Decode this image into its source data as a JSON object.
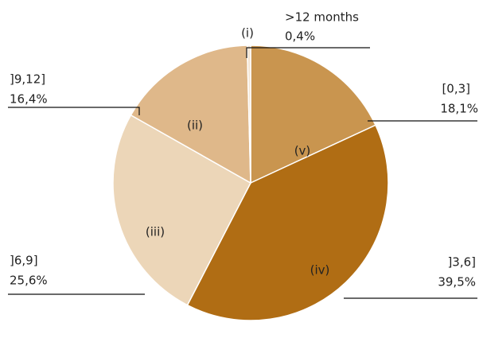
{
  "chart_data": {
    "type": "pie",
    "categories": [
      "[0,3]",
      "]3,6]",
      "]6,9]",
      "]9,12]",
      ">12 months"
    ],
    "slice_labels": [
      "(v)",
      "(iv)",
      "(iii)",
      "(ii)",
      "(i)"
    ],
    "values": [
      18.1,
      39.5,
      25.6,
      16.4,
      0.4
    ],
    "value_labels": [
      "18,1%",
      "39,5%",
      "25,6%",
      "16,4%",
      "0,4%"
    ],
    "colors": [
      "#c9954f",
      "#b06d14",
      "#ecd6b8",
      "#dfb88a",
      "#f3e4d2"
    ]
  }
}
